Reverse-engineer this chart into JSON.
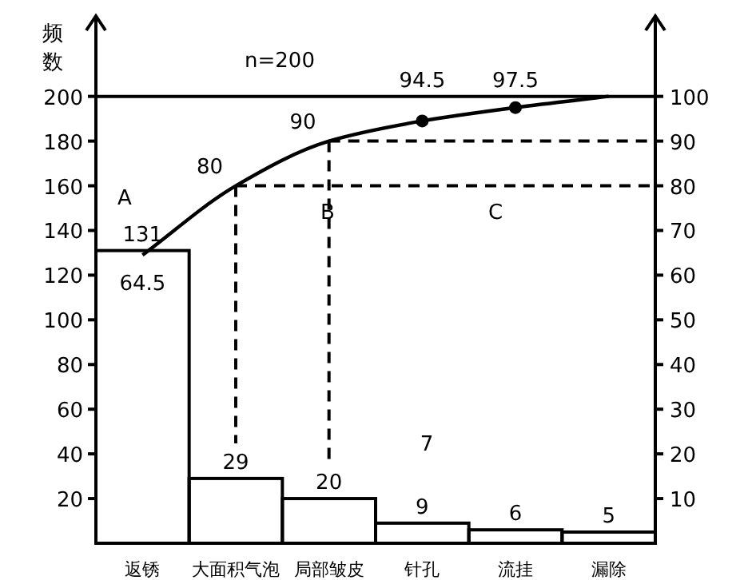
{
  "chart_data": {
    "type": "bar",
    "ylabel": "频数",
    "categories": [
      "返锈",
      "大面积气泡",
      "局部皱皮",
      "针孔",
      "流挂",
      "漏除"
    ],
    "series": [
      {
        "color": "#000000",
        "values": [
          131,
          29,
          20,
          9,
          6,
          5
        ]
      },
      {
        "type": "line",
        "axis": "y2",
        "color": "#000000",
        "values": [
          64.5,
          80,
          90,
          94.5,
          97.5,
          100
        ],
        "value_labels": [
          "64.5",
          "80",
          "90",
          "94.5",
          "97.5",
          null
        ]
      }
    ],
    "data_labels": true,
    "ylim": [
      0,
      236
    ],
    "yticks": [
      20,
      40,
      60,
      80,
      100,
      120,
      140,
      160,
      180,
      200
    ],
    "y2lim": [
      0,
      118
    ],
    "y2ticks": [
      10,
      20,
      30,
      40,
      50,
      60,
      70,
      80,
      90,
      100
    ],
    "ref_lines": [
      {
        "axis": "y",
        "value": 200,
        "line_style": "solid"
      },
      {
        "axis": "y2",
        "value": 80,
        "line_style": "dashed"
      },
      {
        "axis": "y2",
        "value": 90,
        "line_style": "dashed"
      }
    ],
    "annotations": [
      "n=200",
      "A",
      "B",
      "C",
      "7"
    ],
    "grid": false
  }
}
